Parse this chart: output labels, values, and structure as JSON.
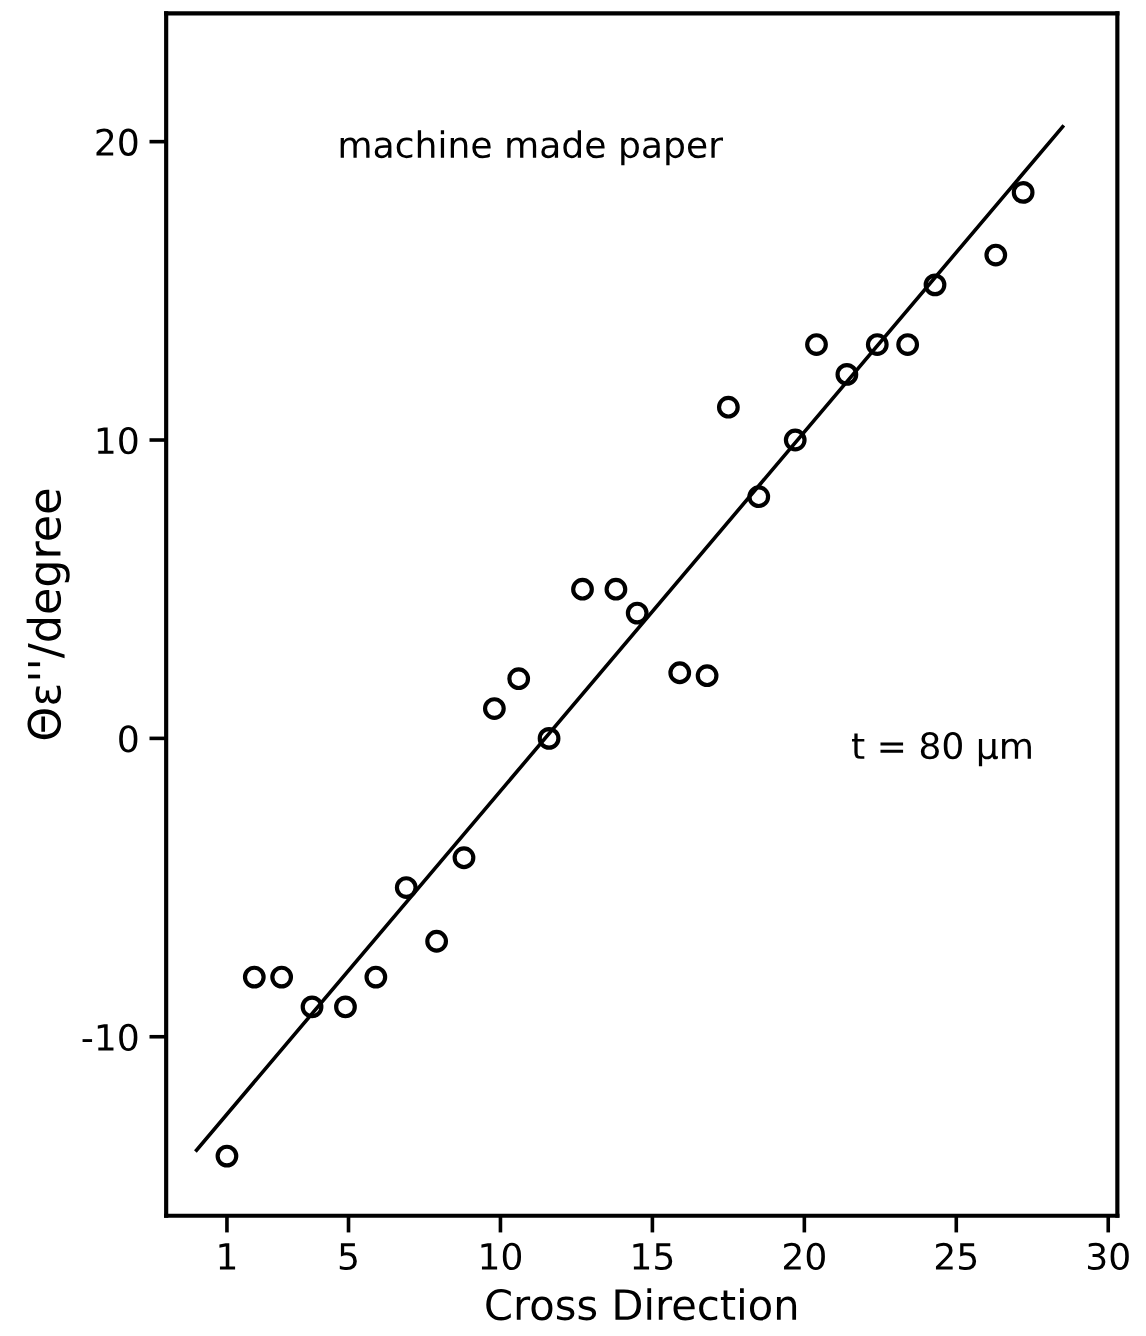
{
  "chart_data": {
    "type": "scatter",
    "xlabel": "Cross Direction",
    "ylabel": "Θε''/degree",
    "annotations": [
      "machine made paper",
      "t = 80 μm"
    ],
    "xlim": [
      -1,
      30.3
    ],
    "ylim": [
      -16,
      24.3
    ],
    "xticks": [
      1,
      5,
      10,
      15,
      20,
      25,
      30
    ],
    "yticks": [
      -10,
      0,
      10,
      20
    ],
    "grid": false,
    "legend": false,
    "marker": "circle",
    "series": [
      {
        "color": "#000000",
        "x": [
          1,
          1.9,
          2.8,
          3.8,
          4.9,
          5.9,
          6.9,
          7.9,
          8.8,
          9.8,
          10.6,
          11.6,
          12.7,
          13.8,
          14.5,
          15.9,
          16.8,
          17.5,
          18.5,
          19.7,
          20.4,
          21.4,
          22.4,
          23.4,
          24.3,
          26.3,
          27.2
        ],
        "values": [
          -14,
          -8,
          -8,
          -9,
          -9,
          -8,
          -5,
          -6.8,
          -4,
          1,
          2,
          0,
          5,
          5,
          4.2,
          2.2,
          2.1,
          11.1,
          8.1,
          10,
          13.2,
          12.2,
          13.2,
          13.2,
          15.2,
          16.2,
          18.3
        ]
      },
      {
        "type": "line",
        "marker": "none",
        "color": "#000000",
        "x": [
          0,
          28.5
        ],
        "values": [
          -13.8,
          20.5
        ]
      }
    ]
  }
}
